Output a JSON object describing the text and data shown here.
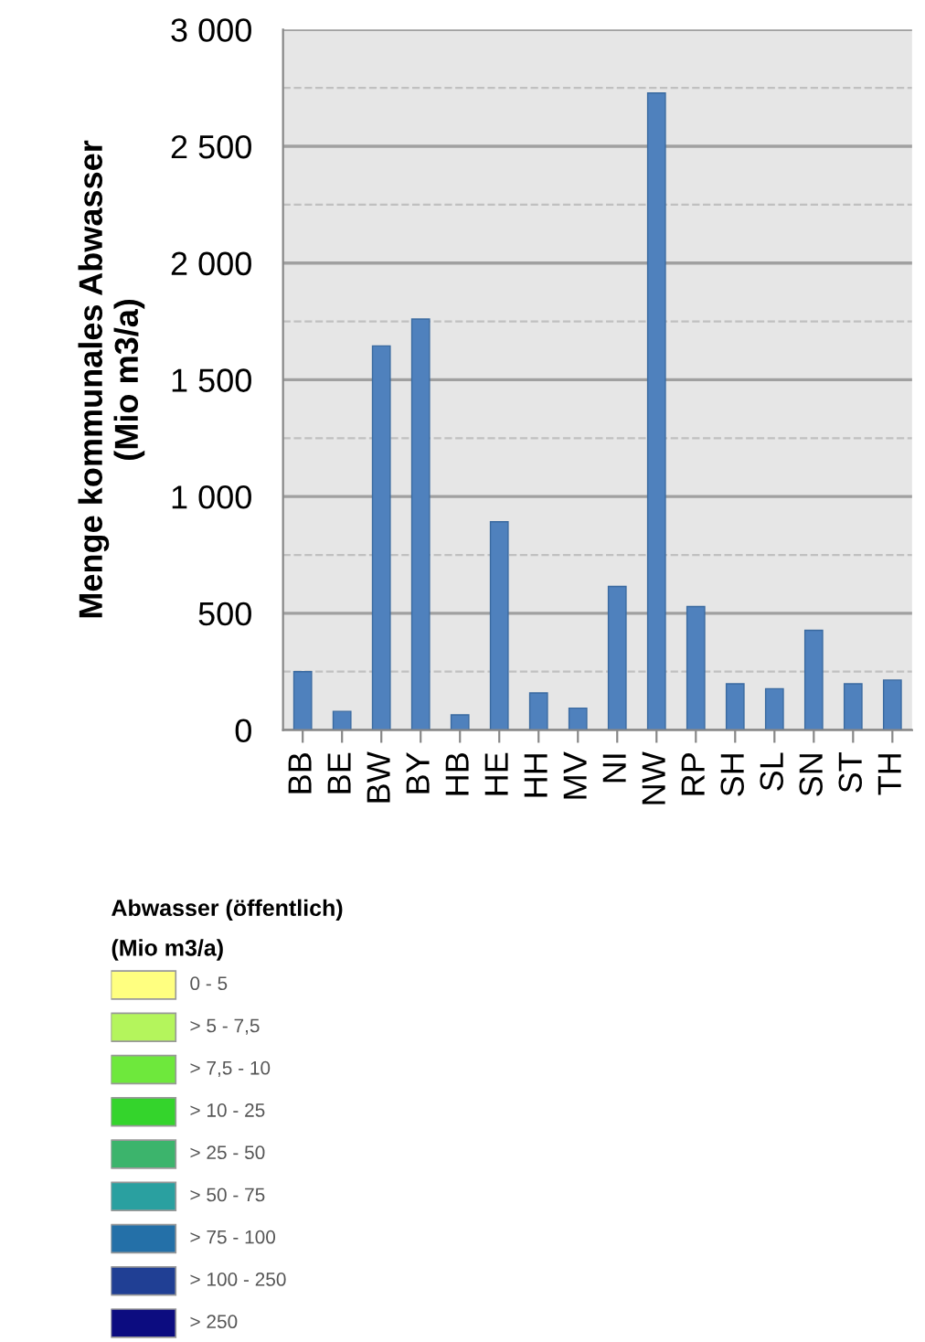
{
  "chart_data": [
    {
      "type": "bar",
      "ylabel": "Menge kommunales Abwasser\n(Mio m3/a)",
      "categories": [
        "BB",
        "BE",
        "BW",
        "BY",
        "HB",
        "HE",
        "HH",
        "MV",
        "NI",
        "NW",
        "RP",
        "SH",
        "SL",
        "SN",
        "ST",
        "TH"
      ],
      "values": [
        250,
        80,
        1645,
        1760,
        65,
        892,
        159,
        94,
        615,
        2728,
        529,
        198,
        177,
        427,
        198,
        214
      ],
      "color": "#4f81bd",
      "ylim": [
        0,
        3000
      ],
      "yticks": [
        0,
        500,
        {
          "value": 1000,
          "label": "1 000"
        },
        {
          "value": 1500,
          "label": "1 500"
        },
        {
          "value": 2000,
          "label": "2 000"
        },
        {
          "value": 2500,
          "label": "2 500"
        },
        {
          "value": 3000,
          "label": "3 000"
        }
      ],
      "grid": "y",
      "legend": false
    },
    {
      "type": "other",
      "title": "Abwasser (öffentlich)",
      "subtitle": "(Mio m3/a)",
      "categories": [
        "0 - 5",
        "> 5 - 7,5",
        "> 7,5 - 10",
        "> 10 - 25",
        "> 25 - 50",
        "> 50 - 75",
        "> 75 - 100",
        "> 100 - 250",
        "> 250"
      ],
      "colors": [
        "#ffff80",
        "#b4f55c",
        "#6ee83c",
        "#34d42c",
        "#3cb46c",
        "#2aa0a0",
        "#2470a8",
        "#203f94",
        "#0c0c80"
      ]
    }
  ]
}
